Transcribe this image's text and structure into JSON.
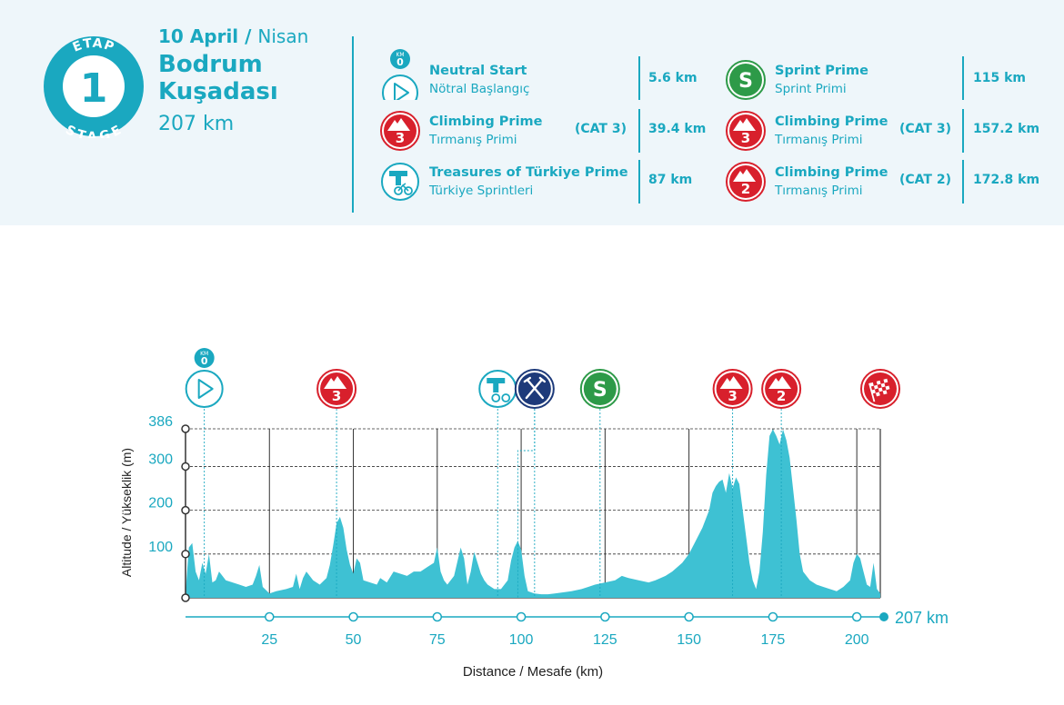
{
  "stage": {
    "etap_label": "ETAP",
    "number": "1",
    "stage_label": "STAGE",
    "date": "10 April",
    "date_sep": " / ",
    "date_tr": "Nisan",
    "start": "Bodrum",
    "finish": "Kuşadası",
    "total_distance": "207 km"
  },
  "legend": [
    {
      "icon": "neutral-start-icon",
      "title": "Neutral Start",
      "subtitle": "Nötral Başlangıç",
      "category": "",
      "km": "5.6 km",
      "km_badge": "KM",
      "km_zero": "0"
    },
    {
      "icon": "climb-cat3-icon",
      "title": "Climbing Prime",
      "subtitle": "Tırmanış Primi",
      "category": "(CAT 3)",
      "km": "39.4 km",
      "cat_num": "3"
    },
    {
      "icon": "treasures-prime-icon",
      "title": "Treasures of Türkiye Prime",
      "subtitle": "Türkiye Sprintleri",
      "category": "",
      "km": "87 km"
    },
    {
      "icon": "sprint-icon",
      "title": "Sprint Prime",
      "subtitle": "Sprint Primi",
      "category": "",
      "km": "115 km",
      "letter": "S"
    },
    {
      "icon": "climb-cat3-icon",
      "title": "Climbing Prime",
      "subtitle": "Tırmanış Primi",
      "category": "(CAT 3)",
      "km": "157.2 km",
      "cat_num": "3"
    },
    {
      "icon": "climb-cat2-icon",
      "title": "Climbing Prime",
      "subtitle": "Tırmanış Primi",
      "category": "(CAT 2)",
      "km": "172.8 km",
      "cat_num": "2"
    }
  ],
  "colors": {
    "teal": "#1aa8c0",
    "fill": "#3ec1d3",
    "red": "#d8202c",
    "green": "#2d9a48",
    "navy": "#1d3a7a",
    "header_bg": "#eef6fa"
  },
  "chart_data": {
    "type": "area",
    "title": "",
    "xlabel": "Distance / Mesafe  (km)",
    "ylabel": "Altitude / Yükseklik (m)",
    "xlim": [
      0,
      207
    ],
    "ylim": [
      0,
      386
    ],
    "x_ticks": [
      25,
      50,
      75,
      100,
      125,
      150,
      175,
      200
    ],
    "y_ticks": [
      100,
      200,
      300,
      386
    ],
    "end_label": "207 km",
    "markers": [
      {
        "km": 5.6,
        "type": "neutral-start",
        "label": "KM",
        "sub": "0"
      },
      {
        "km": 45,
        "type": "climb",
        "label": "3"
      },
      {
        "km": 93,
        "type": "treasures",
        "label": ""
      },
      {
        "km": 104,
        "type": "feed",
        "label": ""
      },
      {
        "km": 123.5,
        "type": "sprint",
        "label": "S"
      },
      {
        "km": 163,
        "type": "climb",
        "label": "3"
      },
      {
        "km": 177.5,
        "type": "climb",
        "label": "2"
      },
      {
        "km": 207,
        "type": "finish",
        "label": ""
      }
    ],
    "x": [
      0,
      1,
      2,
      3,
      4,
      5,
      6,
      7,
      8,
      9,
      10,
      12,
      14,
      16,
      18,
      20,
      21,
      22,
      23,
      25,
      27,
      30,
      32,
      33,
      34,
      35,
      36,
      38,
      40,
      42,
      43,
      44,
      45,
      46,
      47,
      48,
      49,
      50,
      51,
      52,
      53,
      55,
      57,
      58,
      60,
      62,
      64,
      66,
      68,
      70,
      72,
      74,
      75,
      76,
      77,
      78,
      80,
      82,
      83,
      84,
      85,
      86,
      87,
      88,
      89,
      90,
      92,
      94,
      96,
      97,
      98,
      99,
      100,
      101,
      102,
      104,
      106,
      108,
      110,
      112,
      115,
      118,
      120,
      122,
      125,
      128,
      130,
      132,
      135,
      138,
      140,
      143,
      145,
      148,
      150,
      152,
      154,
      156,
      157,
      158,
      159,
      160,
      161,
      162,
      163,
      164,
      165,
      166,
      167,
      168,
      169,
      170,
      171,
      172,
      173,
      174,
      175,
      176,
      177,
      178,
      179,
      180,
      181,
      182,
      183,
      184,
      186,
      188,
      190,
      192,
      194,
      196,
      198,
      199,
      200,
      201,
      202,
      203,
      204,
      205,
      206,
      207
    ],
    "y": [
      10,
      115,
      125,
      60,
      40,
      80,
      55,
      100,
      35,
      40,
      60,
      40,
      35,
      30,
      25,
      30,
      50,
      75,
      25,
      10,
      15,
      20,
      25,
      55,
      20,
      45,
      60,
      40,
      30,
      45,
      75,
      120,
      170,
      185,
      160,
      110,
      75,
      55,
      90,
      80,
      40,
      35,
      30,
      45,
      35,
      60,
      55,
      50,
      60,
      60,
      70,
      80,
      115,
      60,
      40,
      30,
      50,
      115,
      90,
      30,
      60,
      105,
      80,
      55,
      40,
      30,
      20,
      20,
      40,
      85,
      115,
      130,
      110,
      50,
      15,
      10,
      8,
      8,
      10,
      12,
      15,
      20,
      25,
      30,
      35,
      40,
      50,
      45,
      40,
      35,
      40,
      50,
      60,
      80,
      100,
      130,
      160,
      200,
      240,
      255,
      265,
      270,
      240,
      285,
      250,
      275,
      260,
      200,
      140,
      80,
      40,
      20,
      60,
      150,
      280,
      370,
      385,
      370,
      350,
      385,
      360,
      320,
      250,
      180,
      100,
      60,
      40,
      30,
      25,
      20,
      15,
      25,
      40,
      80,
      100,
      90,
      60,
      30,
      25,
      80,
      20,
      10
    ],
    "series": [
      {
        "name": "Altitude"
      }
    ]
  }
}
